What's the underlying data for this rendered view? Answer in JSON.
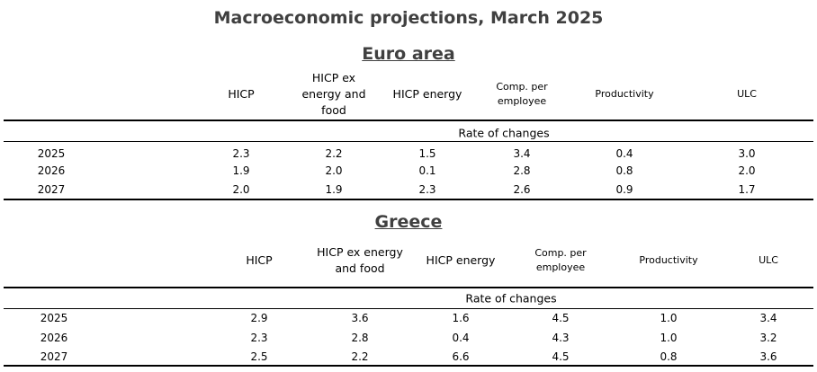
{
  "title": "Macroeconomic projections, March 2025",
  "sections": [
    {
      "heading": "Euro area",
      "columns": [
        "HICP",
        "HICP ex energy and food",
        "HICP energy",
        "Comp. per employee",
        "Productivity",
        "ULC"
      ],
      "subheader": "Rate of changes",
      "rows": [
        [
          "2025",
          "2.3",
          "2.2",
          "1.5",
          "3.4",
          "0.4",
          "3.0"
        ],
        [
          "2026",
          "1.9",
          "2.0",
          "0.1",
          "2.8",
          "0.8",
          "2.0"
        ],
        [
          "2027",
          "2.0",
          "1.9",
          "2.3",
          "2.6",
          "0.9",
          "1.7"
        ]
      ]
    },
    {
      "heading": "Greece",
      "columns": [
        "HICP",
        "HICP ex energy and food",
        "HICP energy",
        "Comp. per employee",
        "Productivity",
        "ULC"
      ],
      "subheader": "Rate of changes",
      "rows": [
        [
          "2025",
          "2.9",
          "3.6",
          "1.6",
          "4.5",
          "1.0",
          "3.4"
        ],
        [
          "2026",
          "2.3",
          "2.8",
          "0.4",
          "4.3",
          "1.0",
          "3.2"
        ],
        [
          "2027",
          "2.5",
          "2.2",
          "6.6",
          "4.5",
          "0.8",
          "3.6"
        ]
      ]
    }
  ]
}
